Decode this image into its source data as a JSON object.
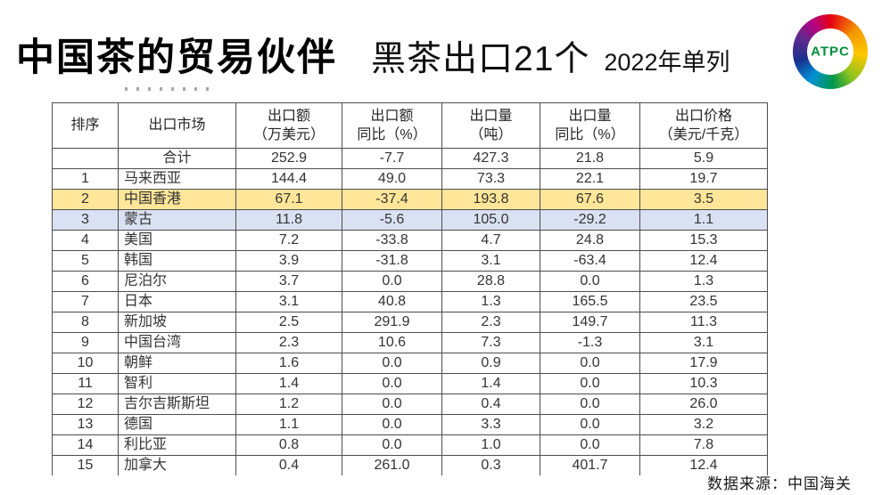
{
  "chart_data": {
    "type": "table",
    "title": {
      "main": "中国茶的贸易伙伴",
      "sub": "黑茶出口21个",
      "note": "2022年单列"
    },
    "logo": {
      "text": "ATPC",
      "text_color": "#00913a"
    },
    "columns": [
      {
        "key": "rank",
        "label": "排序"
      },
      {
        "key": "market",
        "label": "出口市场"
      },
      {
        "key": "value",
        "label": "出口额\n（万美元）"
      },
      {
        "key": "value_yoy",
        "label": "出口额\n同比（%）"
      },
      {
        "key": "volume",
        "label": "出口量\n（吨）"
      },
      {
        "key": "volume_yoy",
        "label": "出口量\n同比（%）"
      },
      {
        "key": "price",
        "label": "出口价格\n（美元/千克）"
      }
    ],
    "rows": [
      {
        "rank": "",
        "market": "合计",
        "value": "252.9",
        "value_yoy": "-7.7",
        "volume": "427.3",
        "volume_yoy": "21.8",
        "price": "5.9",
        "highlight": null
      },
      {
        "rank": "1",
        "market": "马来西亚",
        "value": "144.4",
        "value_yoy": "49.0",
        "volume": "73.3",
        "volume_yoy": "22.1",
        "price": "19.7",
        "highlight": null
      },
      {
        "rank": "2",
        "market": "中国香港",
        "value": "67.1",
        "value_yoy": "-37.4",
        "volume": "193.8",
        "volume_yoy": "67.6",
        "price": "3.5",
        "highlight": "yellow"
      },
      {
        "rank": "3",
        "market": "蒙古",
        "value": "11.8",
        "value_yoy": "-5.6",
        "volume": "105.0",
        "volume_yoy": "-29.2",
        "price": "1.1",
        "highlight": "blue"
      },
      {
        "rank": "4",
        "market": "美国",
        "value": "7.2",
        "value_yoy": "-33.8",
        "volume": "4.7",
        "volume_yoy": "24.8",
        "price": "15.3",
        "highlight": null
      },
      {
        "rank": "5",
        "market": "韩国",
        "value": "3.9",
        "value_yoy": "-31.8",
        "volume": "3.1",
        "volume_yoy": "-63.4",
        "price": "12.4",
        "highlight": null
      },
      {
        "rank": "6",
        "market": "尼泊尔",
        "value": "3.7",
        "value_yoy": "0.0",
        "volume": "28.8",
        "volume_yoy": "0.0",
        "price": "1.3",
        "highlight": null
      },
      {
        "rank": "7",
        "market": "日本",
        "value": "3.1",
        "value_yoy": "40.8",
        "volume": "1.3",
        "volume_yoy": "165.5",
        "price": "23.5",
        "highlight": null
      },
      {
        "rank": "8",
        "market": "新加坡",
        "value": "2.5",
        "value_yoy": "291.9",
        "volume": "2.3",
        "volume_yoy": "149.7",
        "price": "11.3",
        "highlight": null
      },
      {
        "rank": "9",
        "market": "中国台湾",
        "value": "2.3",
        "value_yoy": "10.6",
        "volume": "7.3",
        "volume_yoy": "-1.3",
        "price": "3.1",
        "highlight": null
      },
      {
        "rank": "10",
        "market": "朝鲜",
        "value": "1.6",
        "value_yoy": "0.0",
        "volume": "0.9",
        "volume_yoy": "0.0",
        "price": "17.9",
        "highlight": null
      },
      {
        "rank": "11",
        "market": "智利",
        "value": "1.4",
        "value_yoy": "0.0",
        "volume": "1.4",
        "volume_yoy": "0.0",
        "price": "10.3",
        "highlight": null
      },
      {
        "rank": "12",
        "market": "吉尔吉斯斯坦",
        "value": "1.2",
        "value_yoy": "0.0",
        "volume": "0.4",
        "volume_yoy": "0.0",
        "price": "26.0",
        "highlight": null
      },
      {
        "rank": "13",
        "market": "德国",
        "value": "1.1",
        "value_yoy": "0.0",
        "volume": "3.3",
        "volume_yoy": "0.0",
        "price": "3.2",
        "highlight": null
      },
      {
        "rank": "14",
        "market": "利比亚",
        "value": "0.8",
        "value_yoy": "0.0",
        "volume": "1.0",
        "volume_yoy": "0.0",
        "price": "7.8",
        "highlight": null
      },
      {
        "rank": "15",
        "market": "加拿大",
        "value": "0.4",
        "value_yoy": "261.0",
        "volume": "0.3",
        "volume_yoy": "401.7",
        "price": "12.4",
        "highlight": null
      }
    ],
    "highlight_colors": {
      "yellow": "#FFE699",
      "blue": "#D9E1F2"
    },
    "source": "数据来源：中国海关"
  }
}
